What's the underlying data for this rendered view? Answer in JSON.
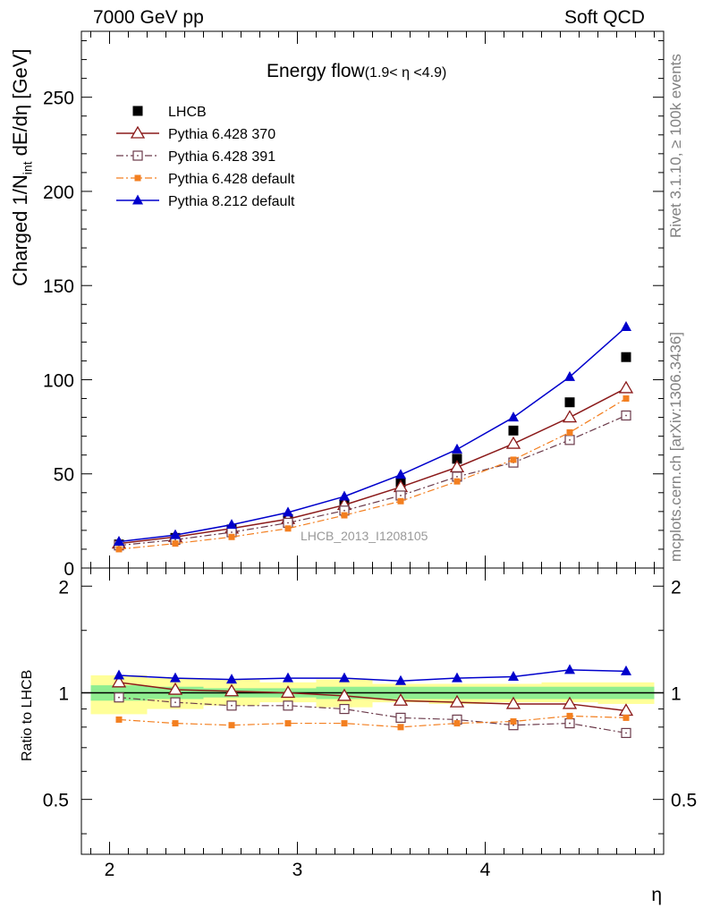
{
  "header": {
    "left": "7000 GeV pp",
    "right": "Soft QCD"
  },
  "side_labels": {
    "rivet": "Rivet 3.1.10, ≥ 100k events",
    "mcplots": "mcplots.cern.ch [arXiv:1306.3436]"
  },
  "colors": {
    "data": "#000000",
    "p6_370": "#8b1a1a",
    "p6_391": "#6b3a4a",
    "p6_default": "#f37f20",
    "p8_default": "#0000cc",
    "band_green": "#90ee90",
    "band_yellow": "#ffff99"
  },
  "chart_data": [
    {
      "type": "scatter",
      "panel": "main",
      "title_main": "Energy flow",
      "title_sub": "(1.9< η <4.9)",
      "ylabel_main": "Charged 1/N",
      "ylabel_sub": "int",
      "ylabel_rest": " dE/dη [GeV]",
      "watermark": "LHCB_2013_I1208105",
      "xlim": [
        1.85,
        4.95
      ],
      "ylim": [
        0,
        285
      ],
      "yticks": [
        0,
        50,
        100,
        150,
        200,
        250
      ],
      "yticklabels": [
        "0",
        "50",
        "100",
        "150",
        "200",
        "250"
      ],
      "legend_position": "top-left",
      "x": [
        2.05,
        2.35,
        2.65,
        2.95,
        3.25,
        3.55,
        3.85,
        4.15,
        4.45,
        4.75
      ],
      "series": [
        {
          "name": "LHCB",
          "key": "data",
          "marker": "square",
          "line": "none",
          "values": [
            12.5,
            16,
            20.5,
            26,
            34,
            45.5,
            58,
            73,
            88,
            112
          ]
        },
        {
          "name": "Pythia 6.428 370",
          "key": "p6_370",
          "marker": "open-triangle",
          "line": "solid",
          "values": [
            13,
            16.5,
            21,
            26,
            33.5,
            43,
            53.5,
            66,
            80,
            95.5
          ]
        },
        {
          "name": "Pythia 6.428 391",
          "key": "p6_391",
          "marker": "open-square",
          "line": "dashdot",
          "values": [
            12,
            15,
            19,
            24,
            30.5,
            38.5,
            48.5,
            56,
            68,
            81
          ]
        },
        {
          "name": "Pythia 6.428 default",
          "key": "p6_default",
          "marker": "small-square",
          "line": "dashdot",
          "values": [
            10,
            13,
            16.5,
            21,
            28,
            35.5,
            46,
            57.5,
            72,
            90
          ]
        },
        {
          "name": "Pythia 8.212 default",
          "key": "p8_default",
          "marker": "triangle",
          "line": "solid",
          "values": [
            14,
            17.5,
            23,
            29.5,
            38,
            49.5,
            63,
            80,
            101.5,
            128
          ]
        }
      ]
    },
    {
      "type": "line",
      "panel": "ratio",
      "ylabel": "Ratio to LHCB",
      "xlabel": "η",
      "xlim": [
        1.85,
        4.95
      ],
      "ylim": [
        0.35,
        2.25
      ],
      "yticks": [
        0.5,
        1,
        2
      ],
      "yticklabels": [
        "0.5",
        "1",
        "2"
      ],
      "xticks": [
        2,
        3,
        4
      ],
      "xticklabels": [
        "2",
        "3",
        "4"
      ],
      "x": [
        2.05,
        2.35,
        2.65,
        2.95,
        3.25,
        3.55,
        3.85,
        4.15,
        4.45,
        4.75
      ],
      "bands": {
        "edges": [
          1.9,
          2.2,
          2.5,
          2.8,
          3.1,
          3.4,
          3.7,
          4.0,
          4.3,
          4.6,
          4.9
        ],
        "green": [
          [
            0.95,
            1.05
          ],
          [
            0.96,
            1.04
          ],
          [
            0.97,
            1.03
          ],
          [
            0.97,
            1.03
          ],
          [
            0.96,
            1.04
          ],
          [
            0.96,
            1.04
          ],
          [
            0.96,
            1.04
          ],
          [
            0.96,
            1.04
          ],
          [
            0.96,
            1.04
          ],
          [
            0.96,
            1.04
          ]
        ],
        "yellow": [
          [
            0.87,
            1.12
          ],
          [
            0.9,
            1.1
          ],
          [
            0.92,
            1.09
          ],
          [
            0.94,
            1.07
          ],
          [
            0.91,
            1.09
          ],
          [
            0.94,
            1.06
          ],
          [
            0.93,
            1.06
          ],
          [
            0.94,
            1.06
          ],
          [
            0.94,
            1.07
          ],
          [
            0.93,
            1.07
          ]
        ]
      },
      "series": [
        {
          "name": "Pythia 6.428 370",
          "key": "p6_370",
          "marker": "open-triangle",
          "line": "solid",
          "values": [
            1.07,
            1.02,
            1.01,
            1.0,
            0.98,
            0.95,
            0.94,
            0.93,
            0.93,
            0.89
          ]
        },
        {
          "name": "Pythia 6.428 391",
          "key": "p6_391",
          "marker": "open-square",
          "line": "dashdot",
          "values": [
            0.97,
            0.94,
            0.92,
            0.92,
            0.9,
            0.85,
            0.84,
            0.81,
            0.82,
            0.77
          ]
        },
        {
          "name": "Pythia 6.428 default",
          "key": "p6_default",
          "marker": "small-square",
          "line": "dashdot",
          "values": [
            0.84,
            0.82,
            0.81,
            0.82,
            0.82,
            0.8,
            0.82,
            0.83,
            0.86,
            0.85
          ]
        },
        {
          "name": "Pythia 8.212 default",
          "key": "p8_default",
          "marker": "triangle",
          "line": "solid",
          "values": [
            1.12,
            1.1,
            1.09,
            1.1,
            1.1,
            1.08,
            1.1,
            1.11,
            1.16,
            1.15
          ]
        }
      ]
    }
  ]
}
